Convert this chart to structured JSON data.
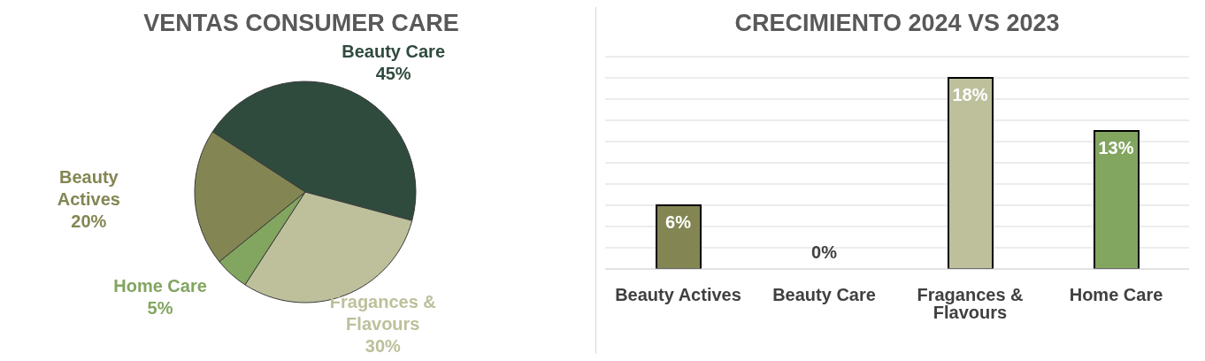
{
  "chart_data": [
    {
      "type": "pie",
      "title": "VENTAS CONSUMER CARE",
      "categories": [
        "Beauty Care",
        "Fragances & Flavours",
        "Home Care",
        "Beauty Actives"
      ],
      "values": [
        45,
        30,
        5,
        20
      ],
      "colors": [
        "#2f4b3e",
        "#bdc09b",
        "#82a560",
        "#838652"
      ],
      "value_labels": [
        "45%",
        "30%",
        "5%",
        "20%"
      ]
    },
    {
      "type": "bar",
      "title": "CRECIMIENTO 2024 VS 2023",
      "categories": [
        "Beauty Actives",
        "Beauty Care",
        "Fragances & Flavours",
        "Home Care"
      ],
      "values": [
        6,
        0,
        18,
        13
      ],
      "colors": [
        "#838652",
        "#2f4b3e",
        "#bdc09b",
        "#82a560"
      ],
      "value_labels": [
        "6%",
        "0%",
        "18%",
        "13%"
      ],
      "ylim": [
        0,
        20
      ],
      "yticks": [
        {
          "value": 0,
          "label": null
        },
        {
          "value": 2,
          "label": null
        },
        {
          "value": 4,
          "label": null
        },
        {
          "value": 6,
          "label": null
        },
        {
          "value": 8,
          "label": null
        },
        {
          "value": 10,
          "label": null
        },
        {
          "value": 12,
          "label": null
        },
        {
          "value": 14,
          "label": null
        },
        {
          "value": 16,
          "label": null
        },
        {
          "value": 18,
          "label": null
        },
        {
          "value": 20,
          "label": null
        }
      ],
      "grid": "y",
      "tick_labels": "x",
      "legend": false
    }
  ]
}
